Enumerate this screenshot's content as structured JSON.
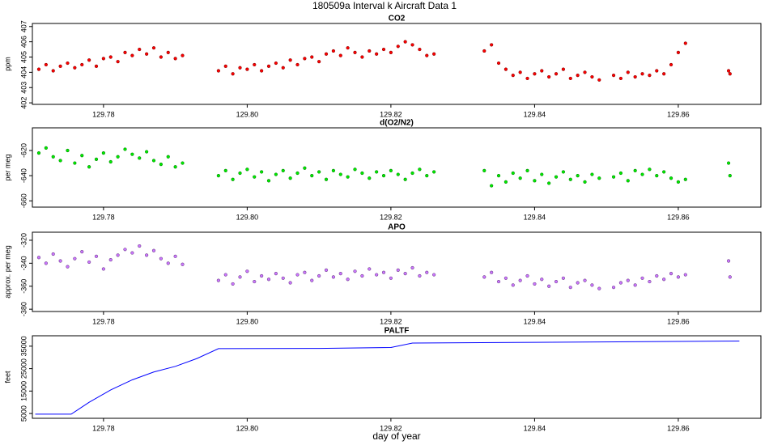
{
  "title": "180509a   Interval k Aircraft Data 1",
  "chart_data": [
    {
      "type": "scatter",
      "title": "CO2",
      "ylabel": "ppm",
      "color": "#ff0000",
      "x": [
        129.771,
        129.772,
        129.773,
        129.774,
        129.775,
        129.776,
        129.777,
        129.778,
        129.779,
        129.78,
        129.781,
        129.782,
        129.783,
        129.784,
        129.785,
        129.786,
        129.787,
        129.788,
        129.789,
        129.79,
        129.791,
        129.796,
        129.797,
        129.798,
        129.799,
        129.8,
        129.801,
        129.802,
        129.803,
        129.804,
        129.805,
        129.806,
        129.807,
        129.808,
        129.809,
        129.81,
        129.811,
        129.812,
        129.813,
        129.814,
        129.815,
        129.816,
        129.817,
        129.818,
        129.819,
        129.82,
        129.821,
        129.822,
        129.823,
        129.824,
        129.825,
        129.826,
        129.833,
        129.834,
        129.835,
        129.836,
        129.837,
        129.838,
        129.839,
        129.84,
        129.841,
        129.842,
        129.843,
        129.844,
        129.845,
        129.846,
        129.847,
        129.848,
        129.849,
        129.851,
        129.852,
        129.853,
        129.854,
        129.855,
        129.856,
        129.857,
        129.858,
        129.859,
        129.86,
        129.861,
        129.867,
        129.8672
      ],
      "values": [
        404.2,
        404.5,
        404.1,
        404.4,
        404.6,
        404.3,
        404.5,
        404.8,
        404.4,
        404.9,
        405.0,
        404.7,
        405.3,
        405.1,
        405.5,
        405.2,
        405.6,
        405.0,
        405.3,
        404.9,
        405.1,
        404.1,
        404.4,
        403.9,
        404.3,
        404.2,
        404.5,
        404.1,
        404.4,
        404.6,
        404.3,
        404.8,
        404.5,
        404.9,
        405.0,
        404.7,
        405.2,
        405.4,
        405.1,
        405.6,
        405.3,
        405.0,
        405.4,
        405.2,
        405.5,
        405.3,
        405.7,
        406.0,
        405.8,
        405.5,
        405.1,
        405.2,
        405.4,
        405.8,
        404.6,
        404.2,
        403.8,
        404.0,
        403.6,
        403.9,
        404.1,
        403.7,
        403.9,
        404.2,
        403.6,
        403.8,
        404.0,
        403.7,
        403.5,
        403.8,
        403.6,
        404.0,
        403.7,
        403.9,
        403.8,
        404.1,
        403.9,
        404.5,
        405.3,
        405.9,
        404.1,
        403.9
      ],
      "xlim": [
        129.7701,
        129.8715
      ],
      "xticks": [
        129.78,
        {
          "value": 129.8,
          "label": "129.80"
        },
        129.82,
        129.84,
        129.86
      ],
      "ylim": [
        401.9,
        407.2
      ],
      "yticks": [
        402,
        403,
        404,
        405,
        406,
        407
      ]
    },
    {
      "type": "scatter",
      "title": "d(O2/N2)",
      "ylabel": "per meg",
      "color": "#00ee00",
      "x": [
        129.771,
        129.772,
        129.773,
        129.774,
        129.775,
        129.776,
        129.777,
        129.778,
        129.779,
        129.78,
        129.781,
        129.782,
        129.783,
        129.784,
        129.785,
        129.786,
        129.787,
        129.788,
        129.789,
        129.79,
        129.791,
        129.796,
        129.797,
        129.798,
        129.799,
        129.8,
        129.801,
        129.802,
        129.803,
        129.804,
        129.805,
        129.806,
        129.807,
        129.808,
        129.809,
        129.81,
        129.811,
        129.812,
        129.813,
        129.814,
        129.815,
        129.816,
        129.817,
        129.818,
        129.819,
        129.82,
        129.821,
        129.822,
        129.823,
        129.824,
        129.825,
        129.826,
        129.833,
        129.834,
        129.835,
        129.836,
        129.837,
        129.838,
        129.839,
        129.84,
        129.841,
        129.842,
        129.843,
        129.844,
        129.845,
        129.846,
        129.847,
        129.848,
        129.849,
        129.851,
        129.852,
        129.853,
        129.854,
        129.855,
        129.856,
        129.857,
        129.858,
        129.859,
        129.86,
        129.861,
        129.867,
        129.8672
      ],
      "values": [
        -622,
        -618,
        -625,
        -628,
        -620,
        -630,
        -624,
        -633,
        -627,
        -622,
        -629,
        -625,
        -619,
        -623,
        -626,
        -621,
        -628,
        -631,
        -625,
        -633,
        -630,
        -640,
        -636,
        -643,
        -638,
        -635,
        -641,
        -637,
        -644,
        -639,
        -636,
        -642,
        -638,
        -634,
        -640,
        -637,
        -643,
        -636,
        -639,
        -641,
        -635,
        -638,
        -642,
        -637,
        -640,
        -636,
        -639,
        -643,
        -638,
        -635,
        -640,
        -637,
        -636,
        -648,
        -640,
        -645,
        -638,
        -642,
        -636,
        -644,
        -639,
        -646,
        -641,
        -637,
        -643,
        -640,
        -645,
        -639,
        -642,
        -641,
        -638,
        -644,
        -636,
        -639,
        -635,
        -640,
        -637,
        -642,
        -645,
        -643,
        -630,
        -640
      ],
      "xlim": [
        129.7701,
        129.8715
      ],
      "xticks": [
        129.78,
        {
          "value": 129.8,
          "label": "129.80"
        },
        129.82,
        129.84,
        129.86
      ],
      "ylim": [
        -665,
        -602
      ],
      "yticks": [
        -620,
        -640,
        -660
      ]
    },
    {
      "type": "scatter",
      "title": "APO",
      "ylabel": "approx. per meg",
      "color": "#cc77ff",
      "x": [
        129.771,
        129.772,
        129.773,
        129.774,
        129.775,
        129.776,
        129.777,
        129.778,
        129.779,
        129.78,
        129.781,
        129.782,
        129.783,
        129.784,
        129.785,
        129.786,
        129.787,
        129.788,
        129.789,
        129.79,
        129.791,
        129.796,
        129.797,
        129.798,
        129.799,
        129.8,
        129.801,
        129.802,
        129.803,
        129.804,
        129.805,
        129.806,
        129.807,
        129.808,
        129.809,
        129.81,
        129.811,
        129.812,
        129.813,
        129.814,
        129.815,
        129.816,
        129.817,
        129.818,
        129.819,
        129.82,
        129.821,
        129.822,
        129.823,
        129.824,
        129.825,
        129.826,
        129.833,
        129.834,
        129.835,
        129.836,
        129.837,
        129.838,
        129.839,
        129.84,
        129.841,
        129.842,
        129.843,
        129.844,
        129.845,
        129.846,
        129.847,
        129.848,
        129.849,
        129.851,
        129.852,
        129.853,
        129.854,
        129.855,
        129.856,
        129.857,
        129.858,
        129.859,
        129.86,
        129.861,
        129.867,
        129.8672
      ],
      "values": [
        -335,
        -340,
        -332,
        -338,
        -343,
        -336,
        -330,
        -339,
        -334,
        -345,
        -337,
        -333,
        -328,
        -331,
        -325,
        -333,
        -329,
        -336,
        -340,
        -334,
        -341,
        -355,
        -350,
        -358,
        -352,
        -347,
        -356,
        -351,
        -354,
        -349,
        -353,
        -357,
        -350,
        -348,
        -355,
        -351,
        -346,
        -352,
        -349,
        -354,
        -347,
        -351,
        -345,
        -350,
        -348,
        -353,
        -346,
        -349,
        -344,
        -351,
        -348,
        -350,
        -352,
        -348,
        -356,
        -353,
        -359,
        -355,
        -351,
        -358,
        -354,
        -360,
        -356,
        -353,
        -361,
        -357,
        -355,
        -359,
        -362,
        -361,
        -357,
        -355,
        -359,
        -353,
        -356,
        -351,
        -354,
        -349,
        -352,
        -350,
        -338,
        -352
      ],
      "xlim": [
        129.7701,
        129.8715
      ],
      "xticks": [
        129.78,
        {
          "value": 129.8,
          "label": "129.80"
        },
        129.82,
        129.84,
        129.86
      ],
      "ylim": [
        -382,
        -313
      ],
      "yticks": [
        -320,
        -340,
        -360,
        -380
      ]
    },
    {
      "type": "line",
      "title": "PALTF",
      "ylabel": "feet",
      "xlabel": "day of year",
      "color": "#0000ff",
      "x": [
        129.7705,
        129.7755,
        129.778,
        129.781,
        129.784,
        129.787,
        129.79,
        129.793,
        129.796,
        129.81,
        129.82,
        129.823,
        129.84,
        129.86,
        129.8685
      ],
      "values": [
        4700,
        4700,
        10000,
        15500,
        20000,
        23500,
        26000,
        29500,
        33900,
        34000,
        34400,
        36400,
        36700,
        37100,
        37300
      ],
      "xlim": [
        129.7701,
        129.8715
      ],
      "xticks": [
        129.78,
        {
          "value": 129.8,
          "label": "129.80"
        },
        129.82,
        129.84,
        129.86
      ],
      "ylim": [
        2860,
        39640
      ],
      "yticks": [
        5000,
        15000,
        25000,
        35000
      ]
    }
  ]
}
